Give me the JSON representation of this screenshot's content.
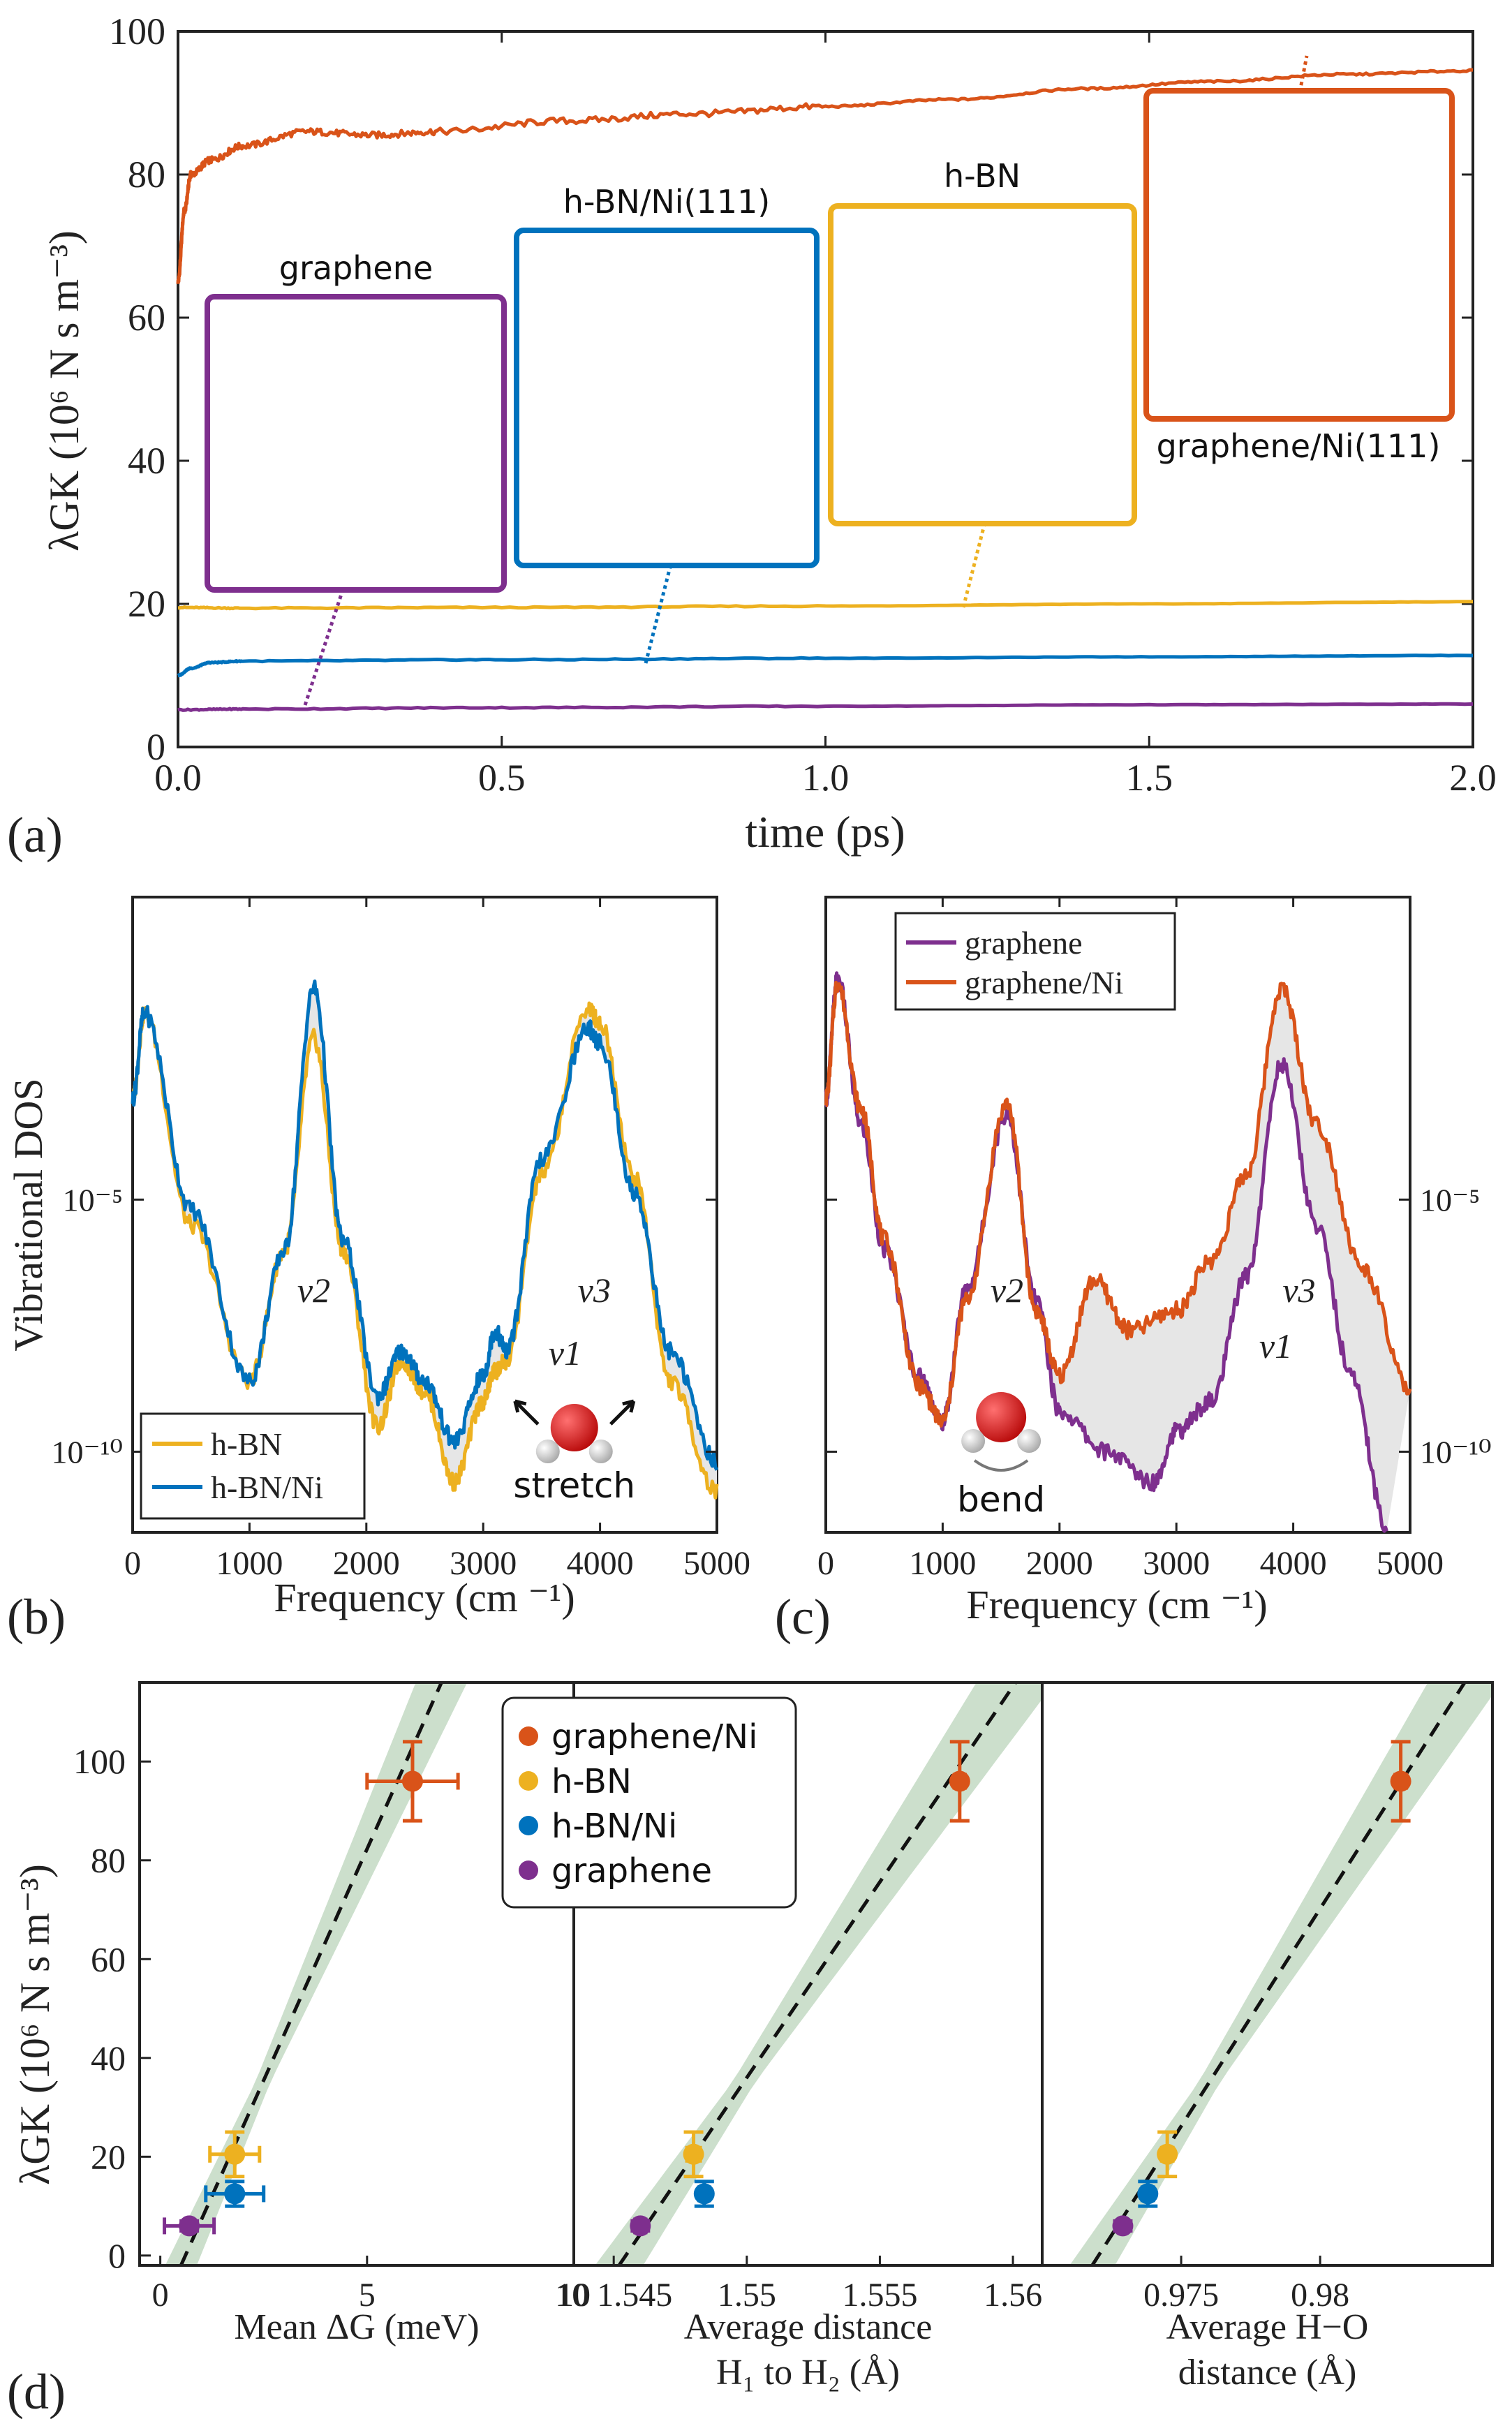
{
  "chart_data": [
    {
      "panel": "(a)",
      "type": "line",
      "xlabel": "time (ps)",
      "ylabel": "λGK (10⁶ N s m⁻³)",
      "xlim": [
        0,
        2.0
      ],
      "ylim": [
        0,
        100
      ],
      "xticks": [
        "0.0",
        "0.5",
        "1.0",
        "1.5",
        "2.0"
      ],
      "yticks": [
        "0",
        "20",
        "40",
        "60",
        "80",
        "100"
      ],
      "series": [
        {
          "name": "graphene/Ni(111)",
          "color": "#d95319",
          "x": [
            0,
            0.01,
            0.02,
            0.05,
            0.1,
            0.2,
            0.3,
            0.4,
            0.6,
            0.8,
            1.0,
            1.2,
            1.4,
            1.6,
            1.8,
            2.0
          ],
          "y": [
            65,
            75,
            80,
            82,
            84,
            86,
            85.5,
            86,
            87.5,
            88.5,
            89.5,
            90.5,
            92,
            93,
            94,
            94.5
          ]
        },
        {
          "name": "h-BN",
          "color": "#edb120",
          "x": [
            0,
            0.1,
            0.5,
            1.0,
            1.5,
            2.0
          ],
          "y": [
            19.5,
            19.4,
            19.5,
            19.7,
            20.0,
            20.3
          ]
        },
        {
          "name": "h-BN/Ni(111)",
          "color": "#0072bd",
          "x": [
            0,
            0.02,
            0.05,
            0.1,
            0.5,
            1.0,
            1.5,
            2.0
          ],
          "y": [
            10,
            11,
            11.8,
            12,
            12.2,
            12.4,
            12.6,
            12.8
          ]
        },
        {
          "name": "graphene",
          "color": "#7e2f8e",
          "x": [
            0,
            0.1,
            0.5,
            1.0,
            1.5,
            2.0
          ],
          "y": [
            5.2,
            5.3,
            5.5,
            5.7,
            5.9,
            6.0
          ]
        }
      ],
      "insets": [
        {
          "label": "graphene",
          "color": "#7e2f8e"
        },
        {
          "label": "h-BN/Ni(111)",
          "color": "#0072bd"
        },
        {
          "label": "h-BN",
          "color": "#edb120"
        },
        {
          "label": "graphene/Ni(111)",
          "color": "#d95319"
        }
      ]
    },
    {
      "panel": "(b)",
      "type": "line",
      "xlabel": "Frequency (cm ⁻¹)",
      "ylabel": "Vibrational DOS",
      "yscale": "log",
      "xlim": [
        0,
        5000
      ],
      "xticks": [
        "0",
        "1000",
        "2000",
        "3000",
        "4000",
        "5000"
      ],
      "yticks": [
        "10⁻⁵",
        "10⁻¹⁰"
      ],
      "annotations": [
        "ν2",
        "ν3",
        "ν1",
        "stretch"
      ],
      "series": [
        {
          "name": "h-BN",
          "color": "#edb120",
          "x": [
            0,
            100,
            500,
            1000,
            1300,
            1550,
            1800,
            2100,
            2300,
            2500,
            2750,
            3000,
            3100,
            3200,
            3500,
            3900,
            4000,
            4300,
            4600,
            5000
          ],
          "y": [
            -3,
            -1.3,
            -5.5,
            -8.6,
            -6,
            -1.8,
            -6,
            -9.5,
            -8.2,
            -8.8,
            -10.6,
            -9,
            -8.4,
            -8.2,
            -4.5,
            -1.2,
            -1.5,
            -4.6,
            -8.6,
            -10.8
          ]
        },
        {
          "name": "h-BN/Ni",
          "color": "#0072bd",
          "x": [
            0,
            100,
            500,
            1000,
            1300,
            1550,
            1800,
            2100,
            2300,
            2500,
            2750,
            3000,
            3100,
            3200,
            3500,
            3900,
            4000,
            4300,
            4600,
            5000
          ],
          "y": [
            -3,
            -1.3,
            -5.2,
            -8.6,
            -6,
            -0.8,
            -5.8,
            -8.9,
            -8.0,
            -8.6,
            -9.8,
            -8.5,
            -7.6,
            -8.0,
            -4.2,
            -1.6,
            -1.9,
            -4.9,
            -8.0,
            -10.2
          ]
        }
      ]
    },
    {
      "panel": "(c)",
      "type": "line",
      "xlabel": "Frequency (cm ⁻¹)",
      "yscale": "log",
      "xlim": [
        0,
        5000
      ],
      "xticks": [
        "0",
        "1000",
        "2000",
        "3000",
        "4000",
        "5000"
      ],
      "yticks": [
        "10⁻⁵",
        "10⁻¹⁰"
      ],
      "annotations": [
        "ν2",
        "ν3",
        "ν1",
        "bend"
      ],
      "series": [
        {
          "name": "graphene",
          "color": "#7e2f8e",
          "x": [
            0,
            100,
            300,
            500,
            800,
            1000,
            1200,
            1550,
            1800,
            2000,
            2400,
            2800,
            3000,
            3300,
            3600,
            3900,
            4200,
            4500,
            4800
          ],
          "y": [
            -3,
            -0.6,
            -3.5,
            -6,
            -8.5,
            -9.4,
            -6.8,
            -3.3,
            -7,
            -9.2,
            -10,
            -10.6,
            -9.6,
            -9.0,
            -6.5,
            -2.3,
            -5.5,
            -8.5,
            -11.5
          ]
        },
        {
          "name": "graphene/Ni",
          "color": "#d95319",
          "x": [
            0,
            100,
            300,
            500,
            800,
            1000,
            1200,
            1550,
            1800,
            2000,
            2300,
            2600,
            3000,
            3300,
            3600,
            3900,
            4200,
            4600,
            5000
          ],
          "y": [
            -3,
            -0.7,
            -3.2,
            -5.8,
            -8.7,
            -9.4,
            -7,
            -3.1,
            -7.2,
            -8.5,
            -6.6,
            -7.6,
            -7.2,
            -6.2,
            -4.5,
            -0.8,
            -3.5,
            -6.4,
            -8.8
          ]
        }
      ]
    },
    {
      "panel": "(d)",
      "type": "scatter",
      "ylabel": "λGK (10⁶ N s m⁻³)",
      "ylim": [
        -2,
        116
      ],
      "yticks": [
        "0",
        "20",
        "40",
        "60",
        "80",
        "100"
      ],
      "legend": [
        "graphene/Ni",
        "h-BN",
        "h-BN/Ni",
        "graphene"
      ],
      "colors": {
        "graphene/Ni": "#d95319",
        "h-BN": "#edb120",
        "h-BN/Ni": "#0072bd",
        "graphene": "#7e2f8e"
      },
      "subplots": [
        {
          "xlabel": [
            "Mean ΔG (meV)"
          ],
          "xlim": [
            -0.5,
            10
          ],
          "xticks": [
            "0",
            "5",
            "10"
          ],
          "xtick_values": [
            0,
            5,
            10
          ],
          "points": [
            {
              "name": "graphene/Ni",
              "x": 6.1,
              "y": 96,
              "xerr": 1.1,
              "yerr": 8
            },
            {
              "name": "h-BN",
              "x": 1.8,
              "y": 20.5,
              "xerr": 0.6,
              "yerr": 4.5
            },
            {
              "name": "h-BN/Ni",
              "x": 1.8,
              "y": 12.5,
              "xerr": 0.7,
              "yerr": 2.5
            },
            {
              "name": "graphene",
              "x": 0.7,
              "y": 6,
              "xerr": 0.6,
              "yerr": 1
            }
          ],
          "fit": {
            "x": [
              0.5,
              6.8
            ],
            "y": [
              -2,
              116
            ]
          }
        },
        {
          "xlabel": [
            "Average distance",
            "H₁ to H₂ (Å)"
          ],
          "xlim": [
            1.5435,
            1.5611
          ],
          "xticks": [
            "10 1.545",
            "1.55",
            "1.555",
            "1.56"
          ],
          "xtick_values": [
            1.545,
            1.55,
            1.555,
            1.56
          ],
          "points": [
            {
              "name": "graphene/Ni",
              "x": 1.558,
              "y": 96,
              "xerr": 0.0002,
              "yerr": 8
            },
            {
              "name": "h-BN",
              "x": 1.548,
              "y": 20.5,
              "xerr": 0.00025,
              "yerr": 4.5
            },
            {
              "name": "h-BN/Ni",
              "x": 1.5484,
              "y": 12.5,
              "xerr": 0.0002,
              "yerr": 2.5
            },
            {
              "name": "graphene",
              "x": 1.546,
              "y": 6,
              "xerr": 0.0002,
              "yerr": 1
            }
          ],
          "fit": {
            "x": [
              1.5452,
              1.5601
            ],
            "y": [
              -2,
              116
            ]
          }
        },
        {
          "xlabel": [
            "Average H−O",
            "distance (Å)"
          ],
          "xlim": [
            0.97,
            0.9862
          ],
          "xticks": [
            "0.975",
            "0.98"
          ],
          "xtick_values": [
            0.975,
            0.98
          ],
          "points": [
            {
              "name": "graphene/Ni",
              "x": 0.9829,
              "y": 96,
              "xerr": 0.0002,
              "yerr": 8
            },
            {
              "name": "h-BN",
              "x": 0.9745,
              "y": 20.5,
              "xerr": 0.0002,
              "yerr": 4.5
            },
            {
              "name": "h-BN/Ni",
              "x": 0.9738,
              "y": 12.5,
              "xerr": 0.0002,
              "yerr": 2.5
            },
            {
              "name": "graphene",
              "x": 0.9729,
              "y": 6,
              "xerr": 0.0001,
              "yerr": 1
            }
          ],
          "fit": {
            "x": [
              0.9718,
              0.9852
            ],
            "y": [
              -2,
              116
            ]
          }
        }
      ]
    }
  ],
  "panel_labels": [
    "(a)",
    "(b)",
    "(c)",
    "(d)"
  ]
}
